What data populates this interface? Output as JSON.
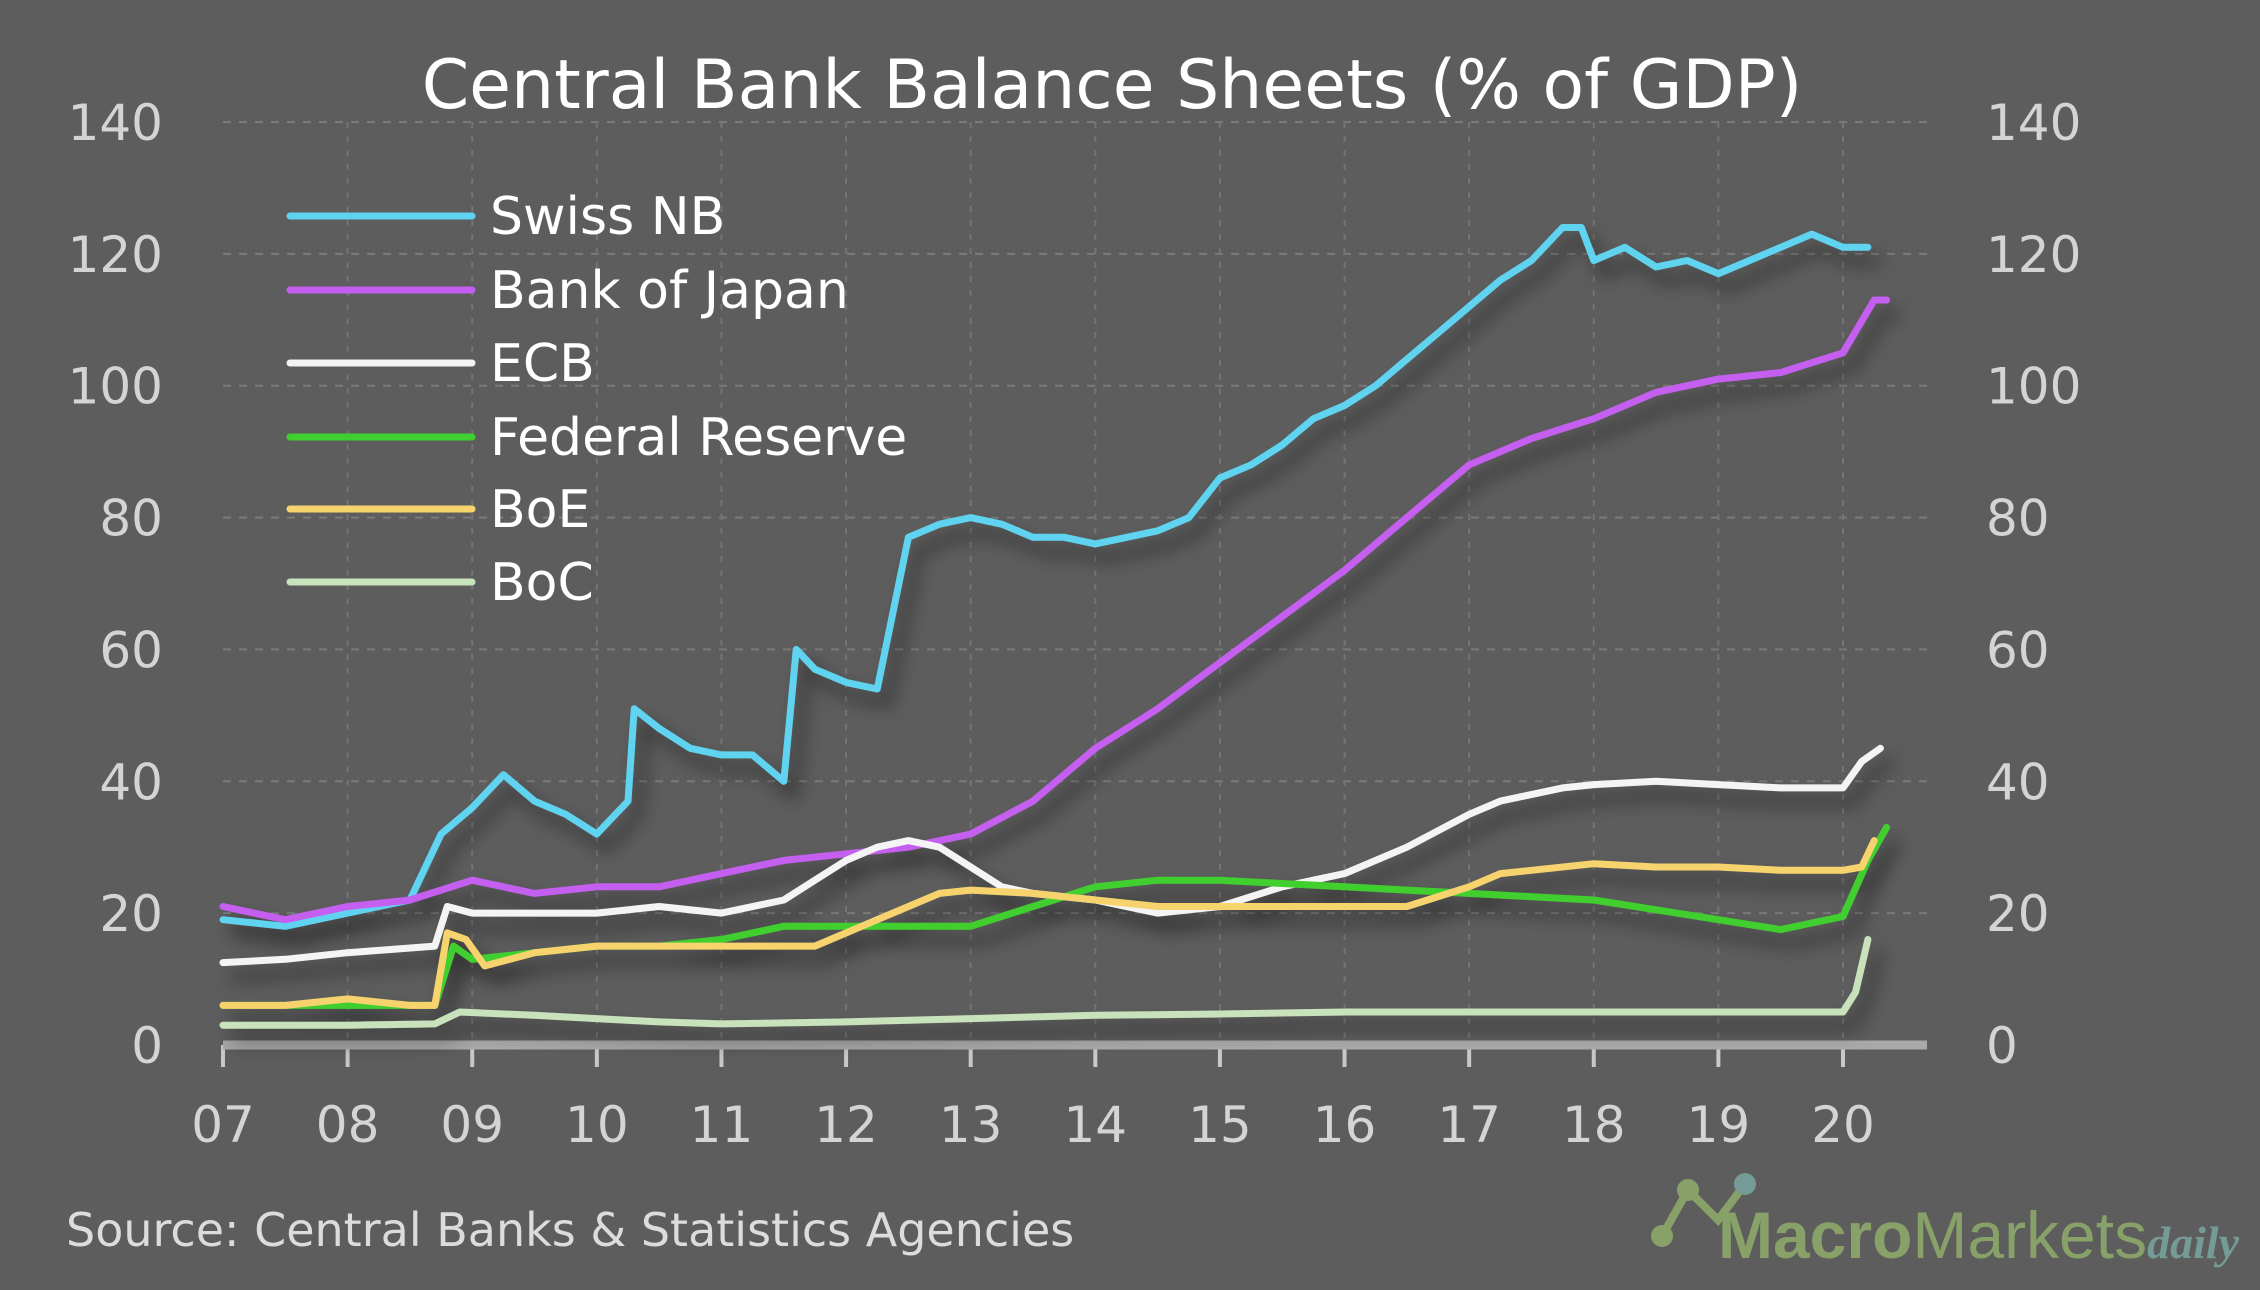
{
  "chart_data": {
    "type": "line",
    "title": "Central Bank Balance Sheets  (% of GDP)",
    "source": "Source: Central Banks & Statistics Agencies",
    "watermark": "MacroMarketsdaily",
    "ylim": [
      0,
      140
    ],
    "yticks": [
      0,
      20,
      40,
      60,
      80,
      100,
      120,
      140
    ],
    "xlim": [
      2007,
      2020.65
    ],
    "xticks": [
      2007,
      2008,
      2009,
      2010,
      2011,
      2012,
      2013,
      2014,
      2015,
      2016,
      2017,
      2018,
      2019,
      2020
    ],
    "xtick_labels": [
      "07",
      "08",
      "09",
      "10",
      "11",
      "12",
      "13",
      "14",
      "15",
      "16",
      "17",
      "18",
      "19",
      "20"
    ],
    "grid": true,
    "dual_y_axis": true,
    "legend_position": "top-left",
    "series": [
      {
        "name": "Swiss NB",
        "color": "#5fd3ef",
        "x": [
          2007,
          2007.5,
          2008,
          2008.5,
          2008.75,
          2009,
          2009.25,
          2009.5,
          2009.75,
          2010,
          2010.25,
          2010.3,
          2010.5,
          2010.75,
          2011,
          2011.25,
          2011.5,
          2011.6,
          2011.75,
          2012,
          2012.25,
          2012.5,
          2012.75,
          2013,
          2013.25,
          2013.5,
          2013.75,
          2014,
          2014.5,
          2014.75,
          2015,
          2015.25,
          2015.5,
          2015.75,
          2016,
          2016.25,
          2016.5,
          2016.75,
          2017,
          2017.25,
          2017.5,
          2017.75,
          2017.9,
          2018,
          2018.25,
          2018.5,
          2018.75,
          2019,
          2019.25,
          2019.5,
          2019.75,
          2020,
          2020.2
        ],
        "values": [
          19,
          18,
          20,
          22,
          32,
          36,
          41,
          37,
          35,
          32,
          37,
          51,
          48,
          45,
          44,
          44,
          40,
          60,
          57,
          55,
          54,
          77,
          79,
          80,
          79,
          77,
          77,
          76,
          78,
          80,
          86,
          88,
          91,
          95,
          97,
          100,
          104,
          108,
          112,
          116,
          119,
          124,
          124,
          119,
          121,
          118,
          119,
          117,
          119,
          121,
          123,
          121,
          121
        ]
      },
      {
        "name": "Bank of Japan",
        "color": "#c45ef0",
        "x": [
          2007,
          2007.5,
          2008,
          2008.5,
          2009,
          2009.5,
          2010,
          2010.5,
          2011,
          2011.5,
          2012,
          2012.5,
          2013,
          2013.5,
          2014,
          2014.5,
          2015,
          2015.5,
          2016,
          2016.5,
          2017,
          2017.5,
          2018,
          2018.5,
          2019,
          2019.5,
          2020,
          2020.25,
          2020.35
        ],
        "values": [
          21,
          19,
          21,
          22,
          25,
          23,
          24,
          24,
          26,
          28,
          29,
          30,
          32,
          37,
          45,
          51,
          58,
          65,
          72,
          80,
          88,
          92,
          95,
          99,
          101,
          102,
          105,
          113,
          113
        ]
      },
      {
        "name": "ECB",
        "color": "#f4f4f4",
        "x": [
          2007,
          2007.5,
          2008,
          2008.7,
          2008.8,
          2009,
          2009.5,
          2010,
          2010.5,
          2011,
          2011.5,
          2011.75,
          2012,
          2012.25,
          2012.5,
          2012.75,
          2013,
          2013.25,
          2013.5,
          2014,
          2014.5,
          2015,
          2015.5,
          2016,
          2016.5,
          2017,
          2017.25,
          2017.75,
          2018,
          2018.5,
          2019,
          2019.5,
          2020,
          2020.15,
          2020.3
        ],
        "values": [
          12.5,
          13,
          14,
          15,
          21,
          20,
          20,
          20,
          21,
          20,
          22,
          25,
          28,
          30,
          31,
          30,
          27,
          24,
          23,
          22,
          20,
          21,
          24,
          26,
          30,
          35,
          37,
          39,
          39.5,
          40,
          39.5,
          39,
          39,
          43,
          45
        ]
      },
      {
        "name": "Federal Reserve",
        "color": "#3fcf2f",
        "x": [
          2007,
          2008,
          2008.7,
          2008.85,
          2009,
          2009.5,
          2010,
          2010.5,
          2011,
          2011.5,
          2012,
          2012.5,
          2013,
          2013.5,
          2014,
          2014.5,
          2015,
          2015.5,
          2016,
          2016.5,
          2017,
          2017.5,
          2018,
          2018.5,
          2019,
          2019.5,
          2019.75,
          2020,
          2020.2,
          2020.35
        ],
        "values": [
          6,
          6,
          6,
          15,
          13,
          14,
          15,
          15,
          16,
          18,
          18,
          18,
          18,
          21,
          24,
          25,
          25,
          24.5,
          24,
          23.5,
          23,
          22.5,
          22,
          20.5,
          19,
          17.5,
          18.5,
          19.5,
          28,
          33
        ]
      },
      {
        "name": "BoE",
        "color": "#f7d36e",
        "x": [
          2007,
          2007.5,
          2008,
          2008.5,
          2008.7,
          2008.8,
          2008.95,
          2009.1,
          2009.5,
          2010,
          2011,
          2011.75,
          2012,
          2012.5,
          2012.75,
          2013,
          2013.5,
          2014,
          2014.5,
          2015,
          2016,
          2016.5,
          2017,
          2017.25,
          2017.5,
          2018,
          2018.5,
          2019,
          2019.5,
          2020,
          2020.15,
          2020.25
        ],
        "values": [
          6,
          6,
          7,
          6,
          6,
          17,
          16,
          12,
          14,
          15,
          15,
          15,
          17,
          21,
          23,
          23.5,
          23,
          22,
          21,
          21,
          21,
          21,
          24,
          26,
          26.5,
          27.5,
          27,
          27,
          26.5,
          26.5,
          27,
          31
        ]
      },
      {
        "name": "BoC",
        "color": "#c8e2bb",
        "x": [
          2007,
          2008,
          2008.7,
          2008.9,
          2009.5,
          2010,
          2010.5,
          2011,
          2012,
          2013,
          2014,
          2015,
          2016,
          2017,
          2018,
          2019,
          2020,
          2020.1,
          2020.2
        ],
        "values": [
          3,
          3,
          3.2,
          5,
          4.5,
          4,
          3.5,
          3.2,
          3.5,
          4,
          4.5,
          4.7,
          5,
          5,
          5,
          5,
          5,
          8,
          16
        ]
      }
    ]
  }
}
